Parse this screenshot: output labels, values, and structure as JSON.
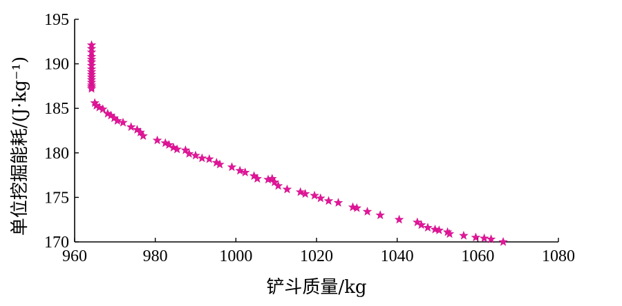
{
  "chart_data": {
    "type": "scatter",
    "xlabel": "铲斗质量/kg",
    "ylabel": "单位挖掘能耗/(J·kg⁻¹)",
    "xlim": [
      960,
      1080
    ],
    "ylim": [
      170,
      195
    ],
    "x_ticks": [
      "960",
      "980",
      "1000",
      "1020",
      "1040",
      "1060",
      "1080"
    ],
    "y_ticks": [
      "170",
      "175",
      "180",
      "185",
      "190",
      "195"
    ],
    "marker": "star",
    "color": "#e4169a",
    "grid": false,
    "series": [
      {
        "x": [
          964.2,
          964.2,
          964.2,
          964.2,
          964.2,
          964.2,
          964.2,
          964.2,
          964.2,
          964.2,
          964.2,
          964.2,
          964.2,
          964.2,
          964.2,
          964.2,
          965,
          965.4,
          966.1,
          967,
          968.2,
          969,
          969.8,
          970.6,
          972,
          974,
          975.5,
          976.3,
          977,
          980.5,
          982.5,
          983.4,
          984.5,
          985.4,
          987.5,
          988.4,
          990,
          991.6,
          993.4,
          995.2,
          996,
          999,
          1001,
          1002.3,
          1004.5,
          1005.3,
          1008,
          1009,
          1009.6,
          1010.5,
          1012.7,
          1016,
          1017.2,
          1019.5,
          1021,
          1023,
          1025.4,
          1029,
          1030,
          1032.6,
          1035.8,
          1040.5,
          1045,
          1046,
          1047.6,
          1049.4,
          1050.4,
          1052.5,
          1053,
          1056.5,
          1059.5,
          1061.6,
          1063.3,
          1066.3
        ],
        "y": [
          192.1,
          191.7,
          191.3,
          190.8,
          190.5,
          190.2,
          189.8,
          189.4,
          189.1,
          188.8,
          188.5,
          188.2,
          187.9,
          187.6,
          187.4,
          187.2,
          185.6,
          185.3,
          185.1,
          184.9,
          184.4,
          184.2,
          183.9,
          183.6,
          183.4,
          182.9,
          182.6,
          182.3,
          181.9,
          181.4,
          181.1,
          180.9,
          180.6,
          180.4,
          180.3,
          179.9,
          179.7,
          179.4,
          179.3,
          178.9,
          178.7,
          178.4,
          178,
          177.8,
          177.4,
          177.1,
          177,
          177.1,
          176.7,
          176.3,
          175.9,
          175.6,
          175.4,
          175.2,
          174.9,
          174.6,
          174.4,
          173.9,
          173.8,
          173.4,
          173,
          172.5,
          172.2,
          171.9,
          171.6,
          171.4,
          171.3,
          171.1,
          170.9,
          170.7,
          170.5,
          170.4,
          170.3,
          170
        ]
      }
    ]
  }
}
